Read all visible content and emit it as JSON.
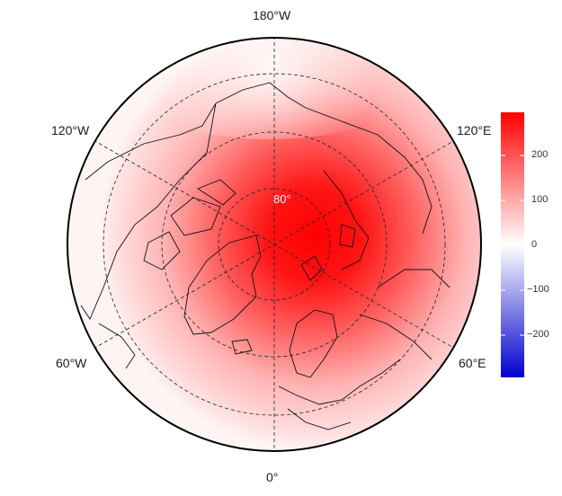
{
  "map": {
    "projection": "north-polar-orthographic",
    "longitude_labels": {
      "top": "180°W",
      "bottom": "0°",
      "left_upper": "120°W",
      "left_lower": "60°W",
      "right_upper": "120°E",
      "right_lower": "60°E"
    },
    "latitude_label": "80°",
    "graticule": "dashed",
    "field": {
      "description_values": "anomaly-style field, positive over Arctic",
      "max_center_value": 280,
      "edge_value": 20
    }
  },
  "colorbar": {
    "ticks": [
      "200",
      "100",
      "0",
      "−100",
      "−200"
    ],
    "range": [
      -290,
      290
    ],
    "colors": {
      "low": "#0000cc",
      "mid": "#ffffff",
      "high": "#ff0000"
    }
  }
}
